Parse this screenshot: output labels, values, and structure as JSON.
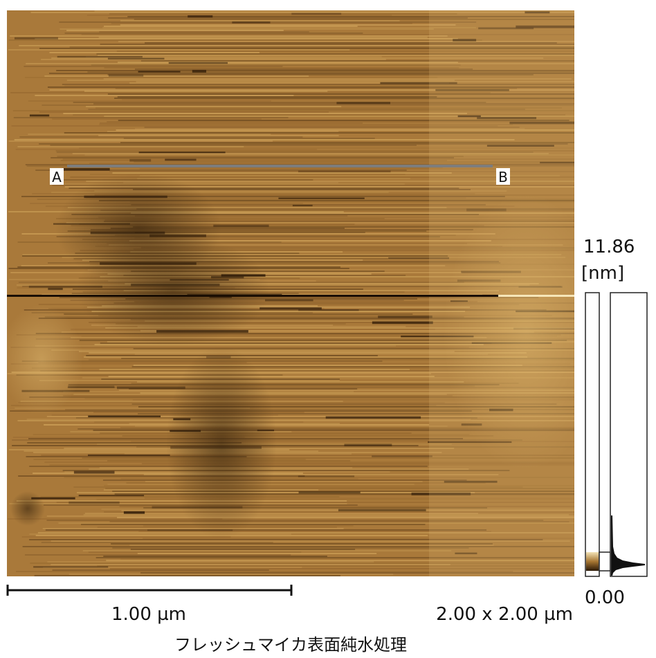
{
  "image": {
    "markers": [
      "A",
      "B"
    ],
    "scale_bar": "1.00 µm",
    "scan_size": "2.00 x 2.00 µm",
    "caption": "フレッシュマイカ表面純水処理"
  },
  "color_scale": {
    "max": "11.86",
    "unit": "[nm]",
    "min": "0.00"
  }
}
